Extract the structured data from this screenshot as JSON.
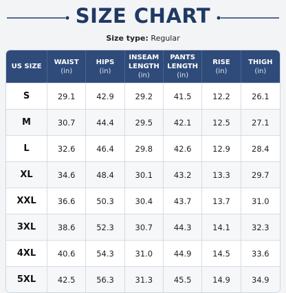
{
  "header": {
    "title": "SIZE CHART",
    "subtitle_label": "Size type:",
    "subtitle_value": "Regular"
  },
  "table": {
    "columns": [
      {
        "name": "US SIZE"
      },
      {
        "name": "WAIST",
        "unit": "(in)"
      },
      {
        "name": "HIPS",
        "unit": "(in)"
      },
      {
        "name": "INSEAM LENGTH",
        "unit": "(in)"
      },
      {
        "name": "PANTS LENGTH",
        "unit": "(in)"
      },
      {
        "name": "RISE",
        "unit": "(in)"
      },
      {
        "name": "THIGH",
        "unit": "(in)"
      }
    ],
    "rows": [
      [
        "S",
        "29.1",
        "42.9",
        "29.2",
        "41.5",
        "12.2",
        "26.1"
      ],
      [
        "M",
        "30.7",
        "44.4",
        "29.5",
        "42.1",
        "12.5",
        "27.1"
      ],
      [
        "L",
        "32.6",
        "46.4",
        "29.8",
        "42.6",
        "12.9",
        "28.4"
      ],
      [
        "XL",
        "34.6",
        "48.4",
        "30.1",
        "43.2",
        "13.3",
        "29.7"
      ],
      [
        "XXL",
        "36.6",
        "50.3",
        "30.4",
        "43.7",
        "13.7",
        "31.0"
      ],
      [
        "3XL",
        "38.6",
        "52.3",
        "30.7",
        "44.3",
        "14.1",
        "32.3"
      ],
      [
        "4XL",
        "40.6",
        "54.3",
        "31.0",
        "44.9",
        "14.5",
        "33.6"
      ],
      [
        "5XL",
        "42.5",
        "56.3",
        "31.3",
        "45.5",
        "14.9",
        "34.9"
      ]
    ]
  }
}
